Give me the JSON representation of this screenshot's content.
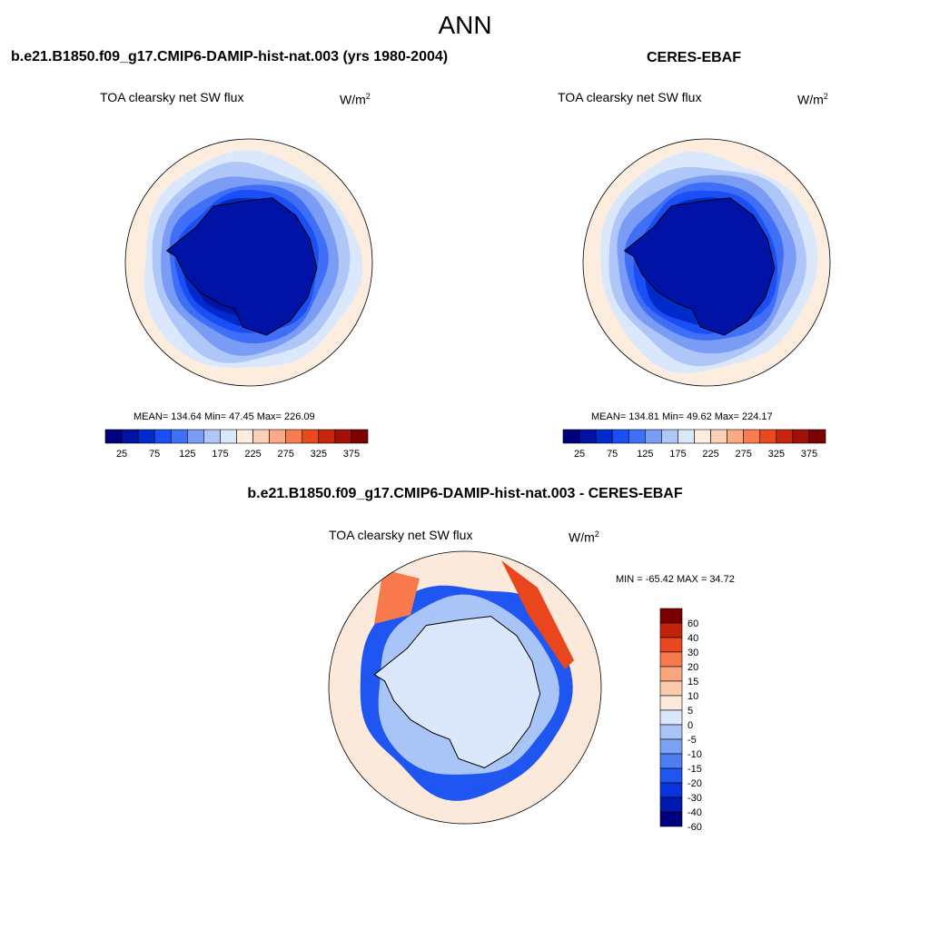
{
  "title": "ANN",
  "panels": [
    {
      "title": "b.e21.B1850.f09_g17.CMIP6-DAMIP-hist-nat.003 (yrs 1980-2004)",
      "variable": "TOA clearsky net SW flux",
      "units": "W/m",
      "units_sup": "2",
      "stats": {
        "mean": "134.64",
        "min": "47.45",
        "max": "226.09"
      },
      "stats_text": "MEAN= 134.64  Min=  47.45  Max= 226.09"
    },
    {
      "title": "CERES-EBAF",
      "variable": "TOA clearsky net SW flux",
      "units": "W/m",
      "units_sup": "2",
      "stats": {
        "mean": "134.81",
        "min": "49.62",
        "max": "224.17"
      },
      "stats_text": "MEAN= 134.81  Min=  49.62  Max= 224.17"
    },
    {
      "title": "b.e21.B1850.f09_g17.CMIP6-DAMIP-hist-nat.003 - CERES-EBAF",
      "variable": "TOA clearsky net SW flux",
      "units": "W/m",
      "units_sup": "2",
      "stats": {
        "min": "-65.42",
        "max": "34.72"
      },
      "stats_text": "MIN = -65.42 MAX =  34.72"
    }
  ],
  "chart_data": [
    {
      "type": "heatmap",
      "projection": "south-polar-stereographic",
      "title": "TOA clearsky net SW flux",
      "units": "W/m2",
      "colorbar_levels": [
        25,
        50,
        75,
        100,
        125,
        150,
        175,
        200,
        225,
        250,
        275,
        300,
        325,
        350,
        375
      ],
      "colorbar_tick_labels": [
        "25",
        "75",
        "125",
        "175",
        "225",
        "275",
        "325",
        "375"
      ],
      "colors": [
        "#00007f",
        "#0013a6",
        "#002acc",
        "#1a4ff5",
        "#3f6ef7",
        "#7b9cf5",
        "#aec6f8",
        "#dbe8fb",
        "#fdeddf",
        "#fcd0b4",
        "#fbaa84",
        "#f97c4f",
        "#e84a20",
        "#c7260c",
        "#a11206",
        "#7d0000"
      ],
      "rings_center_to_edge": [
        40,
        45,
        60,
        80,
        105,
        130,
        160,
        195,
        215
      ]
    },
    {
      "type": "heatmap",
      "projection": "south-polar-stereographic",
      "title": "TOA clearsky net SW flux",
      "units": "W/m2",
      "colorbar_levels": [
        25,
        50,
        75,
        100,
        125,
        150,
        175,
        200,
        225,
        250,
        275,
        300,
        325,
        350,
        375
      ],
      "colorbar_tick_labels": [
        "25",
        "75",
        "125",
        "175",
        "225",
        "275",
        "325",
        "375"
      ],
      "rings_center_to_edge": [
        55,
        55,
        65,
        85,
        110,
        135,
        165,
        195,
        215
      ]
    },
    {
      "type": "heatmap",
      "projection": "south-polar-stereographic",
      "title": "TOA clearsky net SW flux",
      "units": "W/m2",
      "colorbar_levels": [
        -60,
        -40,
        -30,
        -20,
        -15,
        -10,
        -5,
        0,
        5,
        10,
        15,
        20,
        30,
        40,
        60
      ],
      "colorbar_tick_labels": [
        "60",
        "40",
        "30",
        "20",
        "15",
        "10",
        "5",
        "0",
        "-5",
        "-10",
        "-15",
        "-20",
        "-30",
        "-40",
        "-60"
      ],
      "diff_colors": [
        "#00007f",
        "#0019b0",
        "#0a33de",
        "#1f55f0",
        "#4d7ff2",
        "#7aa3f5",
        "#a9c5f7",
        "#dbe8fb",
        "#fbe9dc",
        "#fbccac",
        "#fba57e",
        "#f87a4c",
        "#e9461d",
        "#c3210a",
        "#7d0000"
      ]
    }
  ]
}
